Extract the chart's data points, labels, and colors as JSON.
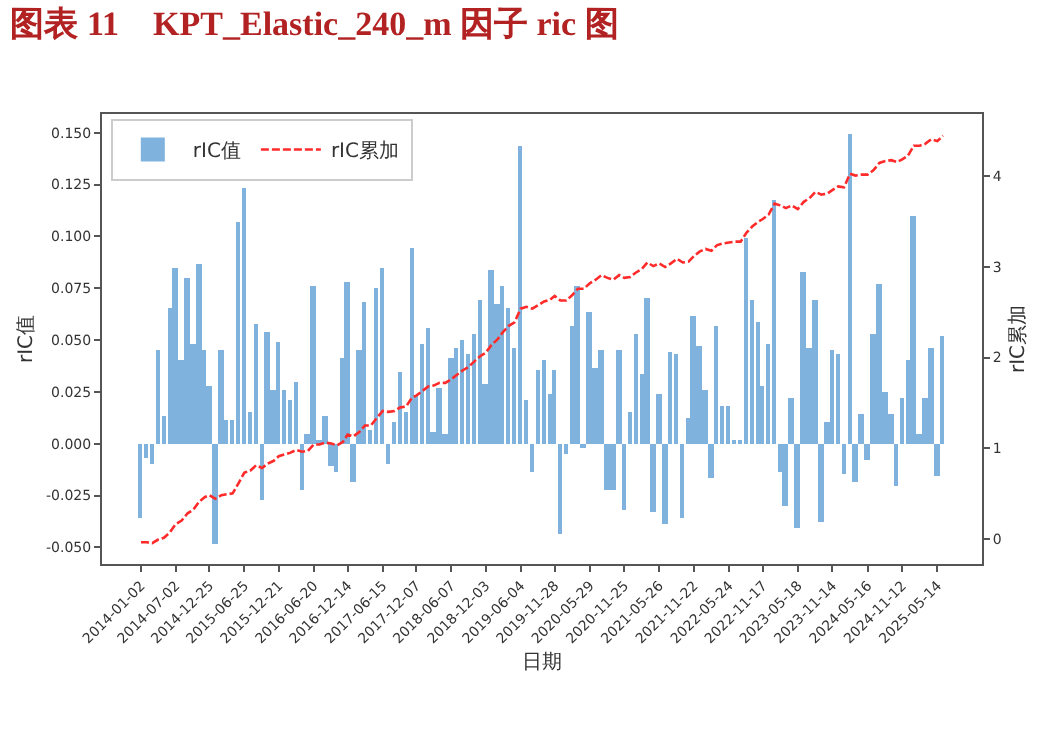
{
  "chart_data": {
    "type": "bar",
    "title": "图表 11　KPT_Elastic_240_m 因子 ric 图",
    "xlabel": "日期",
    "ylabel": "rIC值",
    "y2label": "rIC累加",
    "x": [
      "2014-01-02",
      "2014-02-02",
      "2014-03-02",
      "2014-04-02",
      "2014-05-02",
      "2014-06-02",
      "2014-07-02",
      "2014-08-02",
      "2014-09-02",
      "2014-10-02",
      "2014-11-02",
      "2014-12-02",
      "2014-12-25",
      "2015-01-25",
      "2015-02-25",
      "2015-03-25",
      "2015-04-25",
      "2015-05-25",
      "2015-06-25",
      "2015-07-25",
      "2015-08-25",
      "2015-09-25",
      "2015-10-25",
      "2015-11-25",
      "2015-12-21",
      "2016-01-21",
      "2016-02-21",
      "2016-03-21",
      "2016-04-21",
      "2016-05-21",
      "2016-06-20",
      "2016-07-20",
      "2016-08-20",
      "2016-09-20",
      "2016-10-20",
      "2016-11-20",
      "2016-12-14",
      "2017-01-14",
      "2017-02-14",
      "2017-03-14",
      "2017-04-14",
      "2017-05-14",
      "2017-06-15",
      "2017-07-15",
      "2017-08-15",
      "2017-09-15",
      "2017-10-15",
      "2017-11-15",
      "2017-12-07",
      "2018-01-07",
      "2018-02-07",
      "2018-03-07",
      "2018-04-07",
      "2018-05-07",
      "2018-06-07",
      "2018-07-07",
      "2018-08-07",
      "2018-09-07",
      "2018-10-07",
      "2018-11-07",
      "2018-12-03",
      "2019-01-03",
      "2019-02-03",
      "2019-03-03",
      "2019-04-03",
      "2019-05-03",
      "2019-06-04",
      "2019-07-04",
      "2019-08-04",
      "2019-09-04",
      "2019-10-04",
      "2019-11-04",
      "2019-11-28",
      "2019-12-28",
      "2020-01-28",
      "2020-02-28",
      "2020-03-28",
      "2020-04-28",
      "2020-05-29",
      "2020-06-29",
      "2020-07-29",
      "2020-08-29",
      "2020-09-29",
      "2020-10-29",
      "2020-11-25",
      "2020-12-25",
      "2021-01-25",
      "2021-02-25",
      "2021-03-25",
      "2021-04-25",
      "2021-05-26",
      "2021-06-26",
      "2021-07-26",
      "2021-08-26",
      "2021-09-26",
      "2021-10-26",
      "2021-11-22",
      "2021-12-22",
      "2022-01-22",
      "2022-02-22",
      "2022-03-22",
      "2022-04-22",
      "2022-05-24",
      "2022-06-24",
      "2022-07-24",
      "2022-08-24",
      "2022-09-24",
      "2022-10-24",
      "2022-11-17",
      "2022-12-17",
      "2023-01-17",
      "2023-02-17",
      "2023-03-17",
      "2023-04-17",
      "2023-05-18",
      "2023-06-18",
      "2023-07-18",
      "2023-08-18",
      "2023-09-18",
      "2023-10-18",
      "2023-11-14",
      "2023-12-14",
      "2024-01-14",
      "2024-02-14",
      "2024-03-14",
      "2024-04-14",
      "2024-05-16",
      "2024-06-16",
      "2024-07-16",
      "2024-08-16",
      "2024-09-16",
      "2024-10-16",
      "2024-11-12",
      "2024-12-12",
      "2025-01-12",
      "2025-02-12",
      "2025-03-12",
      "2025-04-12",
      "2025-05-14",
      "2025-06-13"
    ],
    "series": [
      {
        "name": "rIC值",
        "color": "#7fb2dc",
        "values": [
          -0.036,
          -0.007,
          -0.01,
          0.045,
          0.013,
          0.065,
          0.085,
          0.04,
          0.08,
          0.048,
          0.087,
          0.045,
          0.028,
          -0.048,
          0.045,
          0.011,
          0.011,
          0.107,
          0.123,
          0.015,
          0.058,
          -0.027,
          0.054,
          0.026,
          0.049,
          0.026,
          0.021,
          0.03,
          -0.022,
          0.005,
          0.076,
          0.001,
          0.013,
          -0.011,
          -0.014,
          0.041,
          0.078,
          -0.018,
          0.045,
          0.068,
          0.007,
          0.075,
          0.085,
          -0.01,
          0.01,
          0.035,
          0.015,
          0.094,
          0.023,
          0.048,
          0.056,
          0.006,
          0.027,
          0.005,
          0.041,
          0.046,
          0.05,
          0.043,
          0.053,
          0.069,
          0.029,
          0.084,
          0.067,
          0.076,
          0.065,
          0.046,
          0.144,
          0.021,
          -0.014,
          0.036,
          0.04,
          0.024,
          0.036,
          -0.044,
          -0.005,
          0.057,
          0.076,
          -0.002,
          0.064,
          0.037,
          0.045,
          -0.022,
          -0.022,
          0.045,
          -0.032,
          0.015,
          0.053,
          0.034,
          0.07,
          -0.033,
          0.024,
          -0.039,
          0.044,
          0.043,
          -0.036,
          0.012,
          0.062,
          0.047,
          0.026,
          -0.017,
          0.057,
          0.018,
          0.018,
          0.002,
          0.002,
          0.099,
          0.069,
          0.059,
          0.028,
          0.048,
          0.118,
          -0.014,
          -0.03,
          0.022,
          -0.041,
          0.083,
          0.046,
          0.069,
          -0.038,
          0.01,
          0.045,
          0.043,
          -0.015,
          0.149,
          -0.018,
          0.014,
          -0.008,
          0.053,
          0.077,
          0.025,
          0.014,
          -0.02,
          0.022,
          0.04,
          0.11,
          0.005,
          0.022,
          0.046,
          -0.016,
          0.052
        ]
      },
      {
        "name": "rIC累加",
        "type": "line",
        "axis": "y2",
        "color": "#ff2a2a",
        "line_style": "dashed",
        "values": [
          -0.04,
          -0.04,
          -0.05,
          -0.01,
          0.01,
          0.07,
          0.16,
          0.2,
          0.28,
          0.32,
          0.41,
          0.46,
          0.48,
          0.44,
          0.48,
          0.49,
          0.5,
          0.61,
          0.73,
          0.75,
          0.81,
          0.78,
          0.83,
          0.86,
          0.91,
          0.93,
          0.95,
          0.98,
          0.96,
          0.97,
          1.04,
          1.04,
          1.06,
          1.05,
          1.03,
          1.07,
          1.15,
          1.13,
          1.18,
          1.25,
          1.25,
          1.33,
          1.41,
          1.4,
          1.41,
          1.45,
          1.46,
          1.56,
          1.58,
          1.63,
          1.68,
          1.69,
          1.72,
          1.72,
          1.76,
          1.81,
          1.86,
          1.9,
          1.96,
          2.02,
          2.05,
          2.14,
          2.2,
          2.28,
          2.35,
          2.39,
          2.54,
          2.56,
          2.54,
          2.58,
          2.62,
          2.64,
          2.68,
          2.63,
          2.63,
          2.69,
          2.76,
          2.76,
          2.82,
          2.86,
          2.91,
          2.88,
          2.86,
          2.91,
          2.88,
          2.89,
          2.94,
          2.98,
          3.05,
          3.01,
          3.04,
          3.0,
          3.04,
          3.09,
          3.05,
          3.06,
          3.12,
          3.17,
          3.2,
          3.18,
          3.24,
          3.26,
          3.27,
          3.28,
          3.28,
          3.38,
          3.45,
          3.5,
          3.53,
          3.58,
          3.7,
          3.68,
          3.65,
          3.68,
          3.64,
          3.72,
          3.76,
          3.83,
          3.8,
          3.81,
          3.85,
          3.89,
          3.88,
          4.03,
          4.01,
          4.02,
          4.02,
          4.07,
          4.15,
          4.17,
          4.18,
          4.16,
          4.19,
          4.23,
          4.34,
          4.34,
          4.36,
          4.41,
          4.39,
          4.45
        ]
      }
    ],
    "xlim": [
      "2013-06-13",
      "2026-01-02"
    ],
    "xticks": [
      "2014-01-02",
      "2014-07-02",
      "2014-12-25",
      "2015-06-25",
      "2015-12-21",
      "2016-06-20",
      "2016-12-14",
      "2017-06-15",
      "2017-12-07",
      "2018-06-07",
      "2018-12-03",
      "2019-06-04",
      "2019-11-28",
      "2020-05-29",
      "2020-11-25",
      "2021-05-26",
      "2021-11-22",
      "2022-05-24",
      "2022-11-17",
      "2023-05-18",
      "2023-11-14",
      "2024-05-16",
      "2024-11-12",
      "2025-05-14"
    ],
    "ylim": [
      -0.058,
      0.159
    ],
    "yticks": [
      {
        "value": -0.05,
        "label": "-0.050"
      },
      {
        "value": -0.025,
        "label": "-0.025"
      },
      {
        "value": 0,
        "label": "0.000"
      },
      {
        "value": 0.025,
        "label": "0.025"
      },
      {
        "value": 0.05,
        "label": "0.050"
      },
      {
        "value": 0.075,
        "label": "0.075"
      },
      {
        "value": 0.1,
        "label": "0.100"
      },
      {
        "value": 0.125,
        "label": "0.125"
      },
      {
        "value": 0.15,
        "label": "0.150"
      }
    ],
    "y2lim": [
      -0.28,
      4.69
    ],
    "y2ticks": [
      0,
      1,
      2,
      3,
      4
    ],
    "legend": "top left",
    "marker": "none"
  }
}
